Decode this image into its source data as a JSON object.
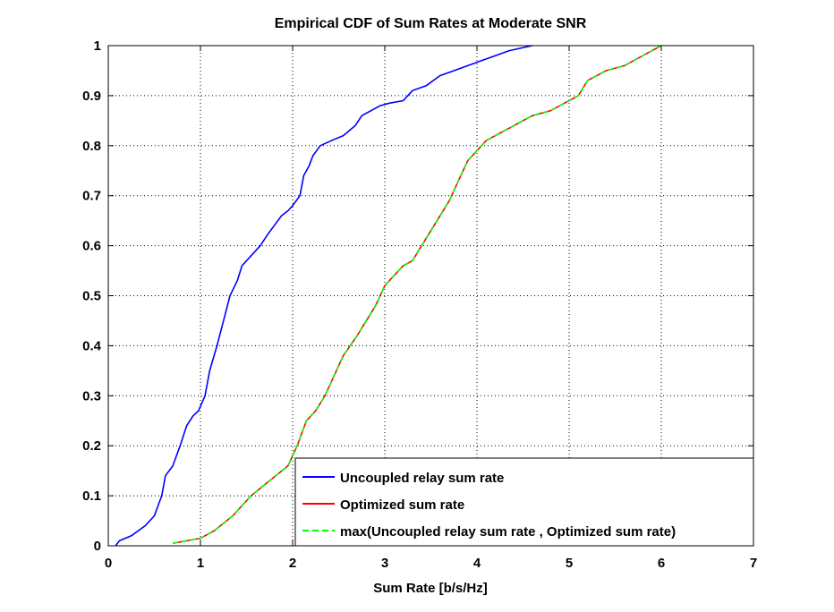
{
  "chart_data": {
    "type": "line",
    "title": "Empirical CDF of Sum Rates at Moderate SNR",
    "xlabel": "Sum Rate [b/s/Hz]",
    "ylabel": "",
    "xlim": [
      0,
      7
    ],
    "ylim": [
      0,
      1
    ],
    "x_ticks": [
      "0",
      "1",
      "2",
      "3",
      "4",
      "5",
      "6",
      "7"
    ],
    "y_ticks": [
      "0",
      "0.1",
      "0.2",
      "0.3",
      "0.4",
      "0.5",
      "0.6",
      "0.7",
      "0.8",
      "0.9",
      "1"
    ],
    "grid": true,
    "legend_position": "bottom-right",
    "series": [
      {
        "name": "Uncoupled relay sum rate",
        "color": "#0000ff",
        "style": "solid",
        "x": [
          0.08,
          0.12,
          0.25,
          0.4,
          0.5,
          0.58,
          0.62,
          0.7,
          0.78,
          0.85,
          0.92,
          0.98,
          1.05,
          1.1,
          1.18,
          1.25,
          1.32,
          1.4,
          1.45,
          1.55,
          1.65,
          1.72,
          1.8,
          1.88,
          1.95,
          2.0,
          2.08,
          2.12,
          2.18,
          2.22,
          2.3,
          2.42,
          2.55,
          2.68,
          2.75,
          2.85,
          2.95,
          3.05,
          3.2,
          3.3,
          3.45,
          3.6,
          3.75,
          3.9,
          4.05,
          4.2,
          4.35,
          4.6
        ],
        "y": [
          0.0,
          0.01,
          0.02,
          0.04,
          0.06,
          0.1,
          0.14,
          0.16,
          0.2,
          0.24,
          0.26,
          0.27,
          0.3,
          0.35,
          0.4,
          0.45,
          0.5,
          0.53,
          0.56,
          0.58,
          0.6,
          0.62,
          0.64,
          0.66,
          0.67,
          0.68,
          0.7,
          0.74,
          0.76,
          0.78,
          0.8,
          0.81,
          0.82,
          0.84,
          0.86,
          0.87,
          0.88,
          0.885,
          0.89,
          0.91,
          0.92,
          0.94,
          0.95,
          0.96,
          0.97,
          0.98,
          0.99,
          1.0
        ]
      },
      {
        "name": "Optimized sum rate",
        "color": "#ff0000",
        "style": "solid",
        "x": [
          0.7,
          0.85,
          1.0,
          1.15,
          1.35,
          1.55,
          1.75,
          1.95,
          2.05,
          2.15,
          2.25,
          2.35,
          2.45,
          2.55,
          2.7,
          2.8,
          2.9,
          3.0,
          3.1,
          3.2,
          3.3,
          3.4,
          3.5,
          3.6,
          3.7,
          3.8,
          3.9,
          4.0,
          4.1,
          4.2,
          4.4,
          4.6,
          4.8,
          5.0,
          5.1,
          5.2,
          5.4,
          5.6,
          5.8,
          6.0
        ],
        "y": [
          0.005,
          0.01,
          0.015,
          0.03,
          0.06,
          0.1,
          0.13,
          0.16,
          0.2,
          0.25,
          0.27,
          0.3,
          0.34,
          0.38,
          0.42,
          0.45,
          0.48,
          0.52,
          0.54,
          0.56,
          0.57,
          0.6,
          0.63,
          0.66,
          0.69,
          0.73,
          0.77,
          0.79,
          0.81,
          0.82,
          0.84,
          0.86,
          0.87,
          0.89,
          0.9,
          0.93,
          0.95,
          0.96,
          0.98,
          1.0
        ]
      },
      {
        "name": "max(Uncoupled relay sum rate , Optimized sum rate)",
        "color": "#00ff00",
        "style": "dashed",
        "x": [
          0.7,
          0.85,
          1.0,
          1.15,
          1.35,
          1.55,
          1.75,
          1.95,
          2.05,
          2.15,
          2.25,
          2.35,
          2.45,
          2.55,
          2.7,
          2.8,
          2.9,
          3.0,
          3.1,
          3.2,
          3.3,
          3.4,
          3.5,
          3.6,
          3.7,
          3.8,
          3.9,
          4.0,
          4.1,
          4.2,
          4.4,
          4.6,
          4.8,
          5.0,
          5.1,
          5.2,
          5.4,
          5.6,
          5.8,
          6.0
        ],
        "y": [
          0.005,
          0.01,
          0.015,
          0.03,
          0.06,
          0.1,
          0.13,
          0.16,
          0.2,
          0.25,
          0.27,
          0.3,
          0.34,
          0.38,
          0.42,
          0.45,
          0.48,
          0.52,
          0.54,
          0.56,
          0.57,
          0.6,
          0.63,
          0.66,
          0.69,
          0.73,
          0.77,
          0.79,
          0.81,
          0.82,
          0.84,
          0.86,
          0.87,
          0.89,
          0.9,
          0.93,
          0.95,
          0.96,
          0.98,
          1.0
        ]
      }
    ]
  }
}
